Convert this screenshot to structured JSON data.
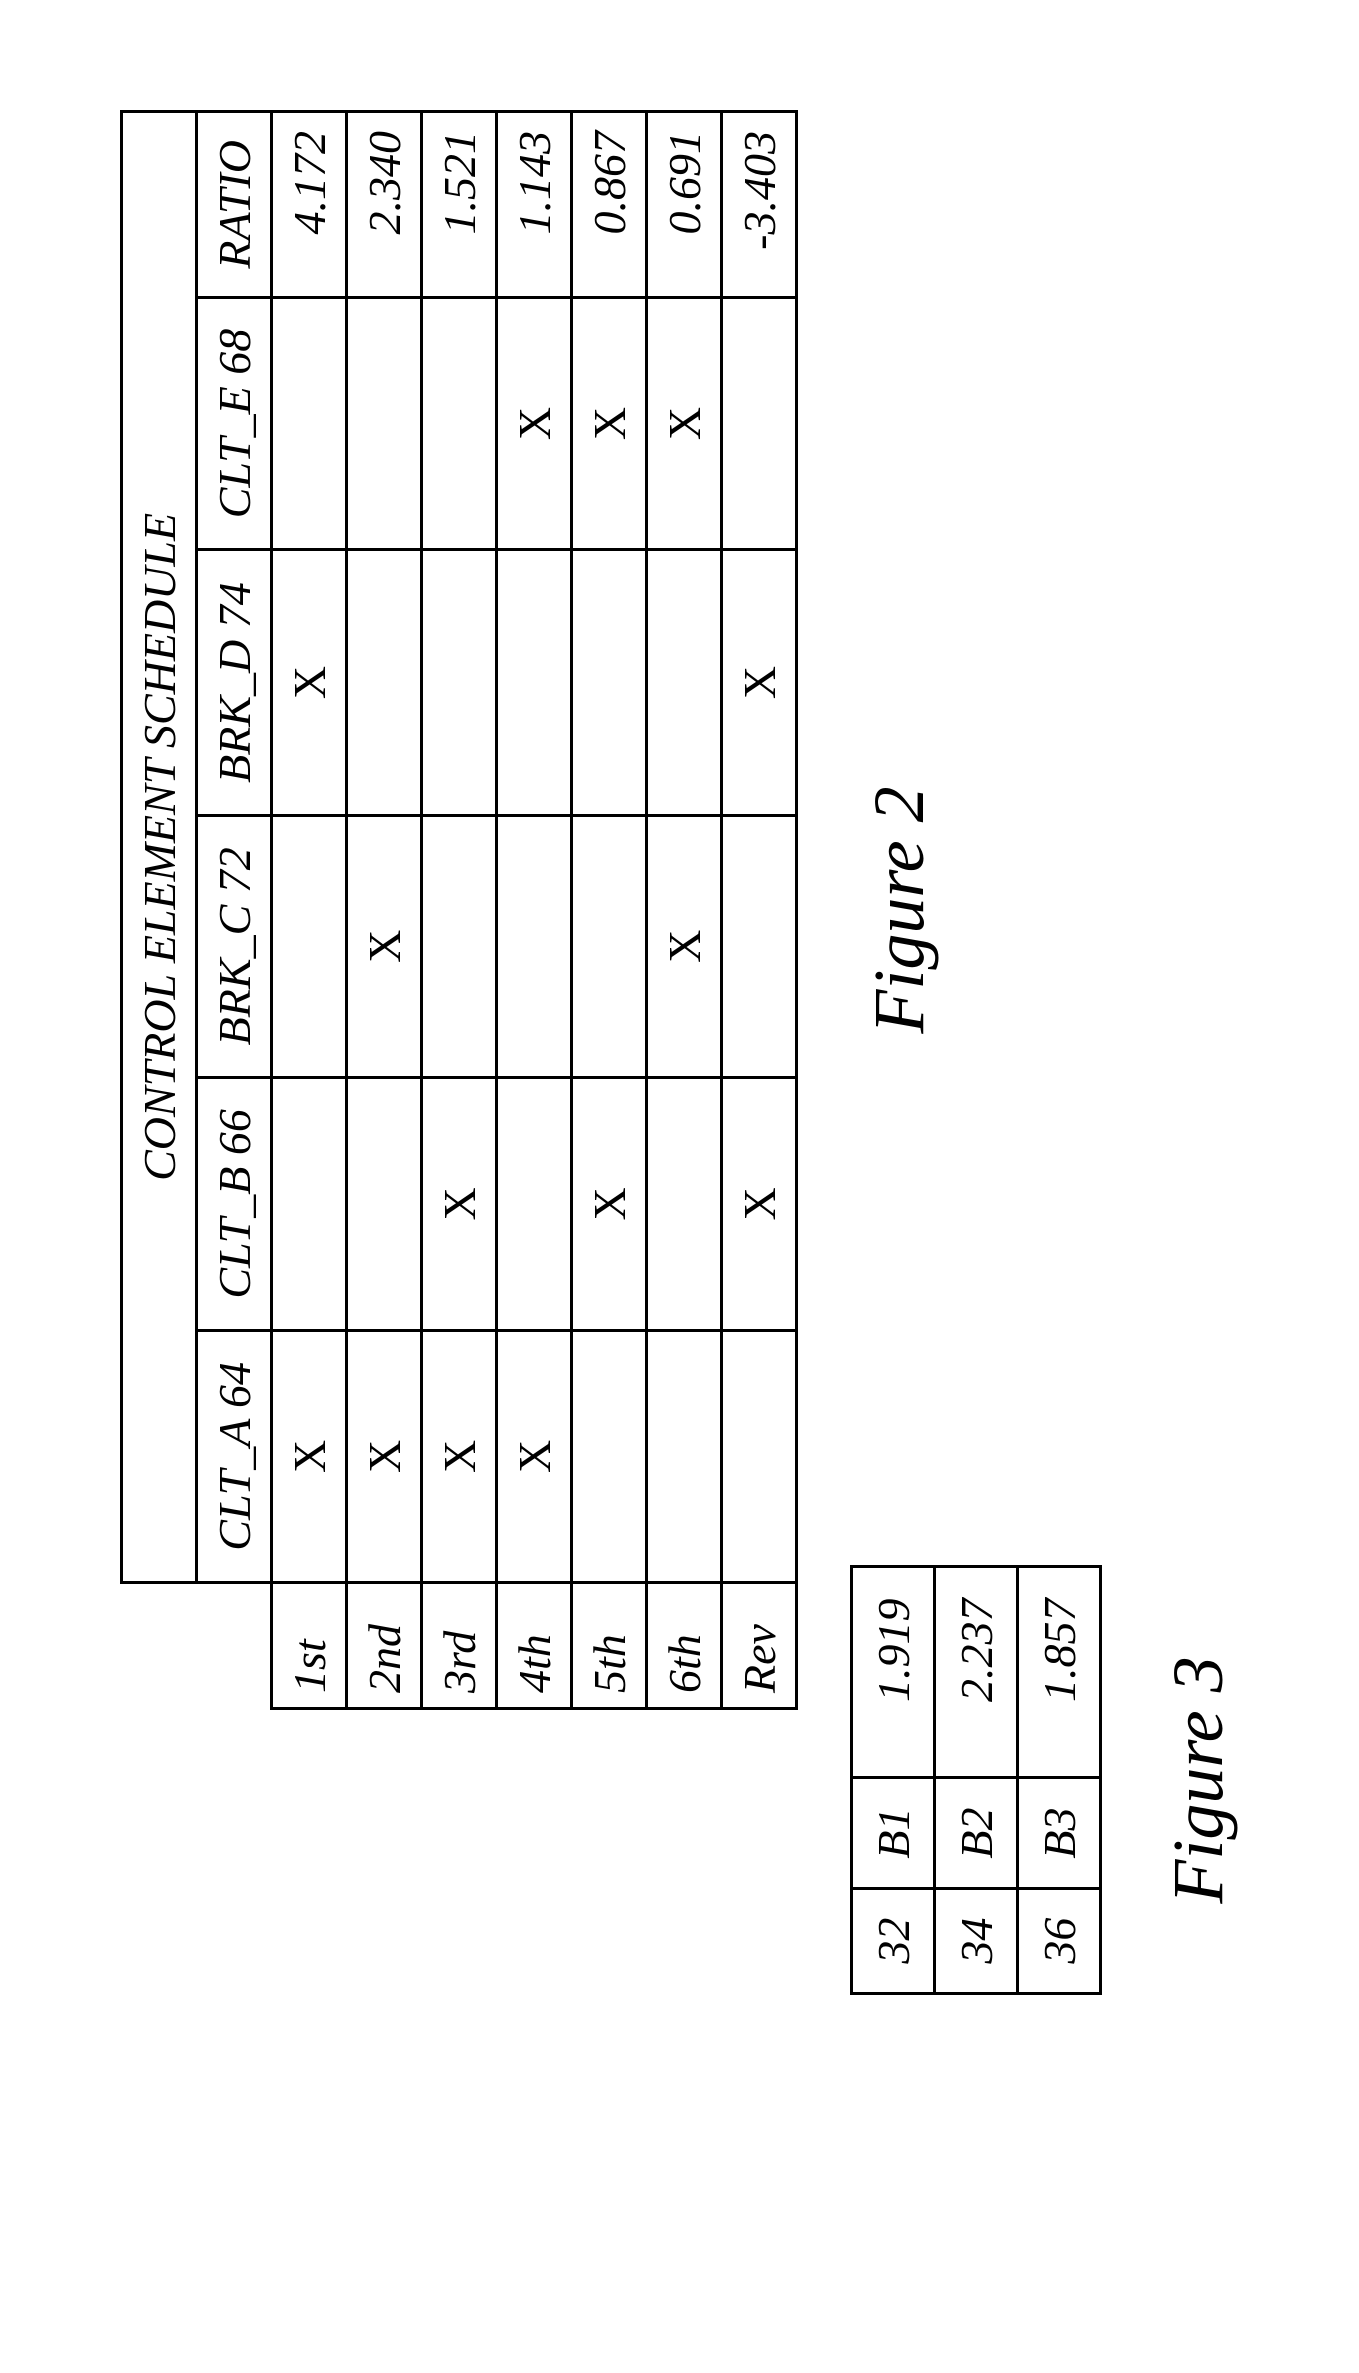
{
  "fig2": {
    "title": "CONTROL ELEMENT SCHEDULE",
    "cols": [
      "CLT_A 64",
      "CLT_B 66",
      "BRK_C 72",
      "BRK_D 74",
      "CLT_E 68",
      "RATIO"
    ],
    "rows": [
      {
        "hdr": "1st",
        "c0": "X",
        "c1": "",
        "c2": "",
        "c3": "X",
        "c4": "",
        "ratio": "4.172"
      },
      {
        "hdr": "2nd",
        "c0": "X",
        "c1": "",
        "c2": "X",
        "c3": "",
        "c4": "",
        "ratio": "2.340"
      },
      {
        "hdr": "3rd",
        "c0": "X",
        "c1": "X",
        "c2": "",
        "c3": "",
        "c4": "",
        "ratio": "1.521"
      },
      {
        "hdr": "4th",
        "c0": "X",
        "c1": "",
        "c2": "",
        "c3": "",
        "c4": "X",
        "ratio": "1.143"
      },
      {
        "hdr": "5th",
        "c0": "",
        "c1": "X",
        "c2": "",
        "c3": "",
        "c4": "X",
        "ratio": "0.867"
      },
      {
        "hdr": "6th",
        "c0": "",
        "c1": "",
        "c2": "X",
        "c3": "",
        "c4": "X",
        "ratio": "0.691"
      },
      {
        "hdr": "Rev",
        "c0": "",
        "c1": "X",
        "c2": "",
        "c3": "X",
        "c4": "",
        "ratio": "-3.403"
      }
    ],
    "caption": "Figure 2",
    "mark": "X",
    "colors": {
      "line": "#000000",
      "bg": "#ffffff"
    },
    "fontsize_pt": 34
  },
  "fig3": {
    "rows": [
      {
        "a": "32",
        "b": "B1",
        "v": "1.919"
      },
      {
        "a": "34",
        "b": "B2",
        "v": "2.237"
      },
      {
        "a": "36",
        "b": "B3",
        "v": "1.857"
      }
    ],
    "caption": "Figure 3",
    "colors": {
      "line": "#000000",
      "bg": "#ffffff"
    },
    "fontsize_pt": 34
  }
}
